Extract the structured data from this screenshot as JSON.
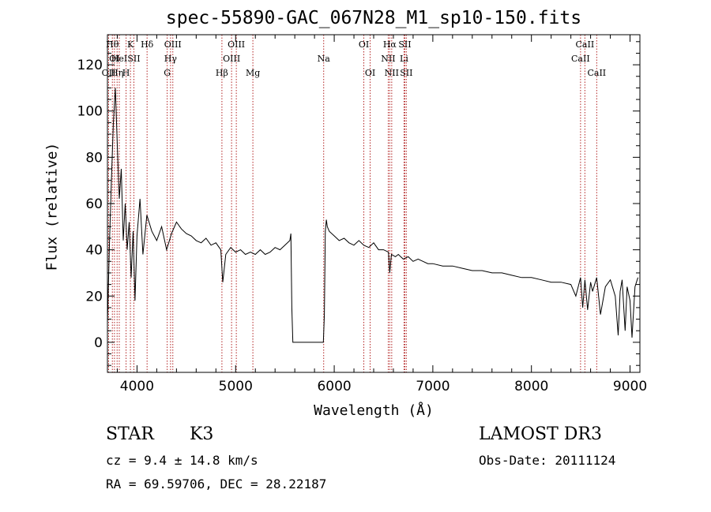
{
  "chart_data": {
    "type": "line",
    "title": "spec-55890-GAC_067N28_M1_sp10-150.fits",
    "xlabel": "Wavelength (Å)",
    "ylabel": "Flux (relative)",
    "xlim": [
      3700,
      9100
    ],
    "ylim": [
      -13,
      133
    ],
    "xticks": [
      4000,
      5000,
      6000,
      7000,
      8000,
      9000
    ],
    "yticks": [
      0,
      20,
      40,
      60,
      80,
      100,
      120
    ],
    "series": [
      {
        "name": "flux",
        "color": "#000000",
        "x": [
          3700,
          3720,
          3740,
          3760,
          3780,
          3800,
          3820,
          3840,
          3860,
          3880,
          3900,
          3920,
          3940,
          3960,
          3980,
          4000,
          4030,
          4060,
          4100,
          4150,
          4200,
          4250,
          4300,
          4350,
          4400,
          4450,
          4500,
          4550,
          4600,
          4650,
          4700,
          4750,
          4800,
          4850,
          4870,
          4900,
          4950,
          5000,
          5050,
          5100,
          5150,
          5200,
          5250,
          5300,
          5350,
          5400,
          5450,
          5500,
          5550,
          5560,
          5570,
          5580,
          5600,
          5700,
          5800,
          5890,
          5900,
          5910,
          5920,
          5930,
          5950,
          6000,
          6050,
          6100,
          6150,
          6200,
          6250,
          6300,
          6350,
          6400,
          6450,
          6500,
          6550,
          6563,
          6580,
          6620,
          6650,
          6700,
          6750,
          6800,
          6850,
          6900,
          6950,
          7000,
          7100,
          7200,
          7300,
          7400,
          7500,
          7600,
          7700,
          7800,
          7900,
          8000,
          8100,
          8200,
          8300,
          8400,
          8450,
          8498,
          8520,
          8542,
          8570,
          8600,
          8620,
          8662,
          8700,
          8750,
          8800,
          8850,
          8880,
          8900,
          8920,
          8950,
          8970,
          9000,
          9020,
          9050,
          9080
        ],
        "values": [
          8,
          42,
          70,
          95,
          110,
          85,
          62,
          75,
          44,
          60,
          40,
          52,
          28,
          48,
          18,
          46,
          62,
          38,
          55,
          48,
          44,
          50,
          40,
          47,
          52,
          49,
          47,
          46,
          44,
          43,
          45,
          42,
          43,
          40,
          26,
          38,
          41,
          39,
          40,
          38,
          39,
          38,
          40,
          38,
          39,
          41,
          40,
          42,
          44,
          47,
          15,
          0,
          0,
          0,
          0,
          0,
          12,
          48,
          53,
          50,
          48,
          46,
          44,
          45,
          43,
          42,
          44,
          42,
          41,
          43,
          40,
          40,
          39,
          30,
          38,
          37,
          38,
          36,
          37,
          35,
          36,
          35,
          34,
          34,
          33,
          33,
          32,
          31,
          31,
          30,
          30,
          29,
          28,
          28,
          27,
          26,
          26,
          25,
          20,
          28,
          15,
          27,
          14,
          26,
          22,
          28,
          12,
          24,
          27,
          20,
          3,
          22,
          27,
          5,
          24,
          18,
          2,
          24,
          28
        ]
      }
    ],
    "lines": [
      {
        "wl": 3712,
        "label": "OII",
        "row": 2
      },
      {
        "wl": 3750,
        "label": "Hθ",
        "row": 0
      },
      {
        "wl": 3771,
        "label": "OI",
        "row": 1
      },
      {
        "wl": 3798,
        "label": "Hη",
        "row": 2
      },
      {
        "wl": 3820,
        "label": "HeI",
        "row": 1
      },
      {
        "wl": 3889,
        "label": "H",
        "row": 2
      },
      {
        "wl": 3933,
        "label": "K",
        "row": 0
      },
      {
        "wl": 3968,
        "label": "SII",
        "row": 1
      },
      {
        "wl": 4102,
        "label": "Hδ",
        "row": 0
      },
      {
        "wl": 4306,
        "label": "G",
        "row": 2
      },
      {
        "wl": 4340,
        "label": "Hγ",
        "row": 1
      },
      {
        "wl": 4363,
        "label": "OIII",
        "row": 0
      },
      {
        "wl": 4861,
        "label": "Hβ",
        "row": 2
      },
      {
        "wl": 4959,
        "label": "OIII",
        "row": 1
      },
      {
        "wl": 5007,
        "label": "OIII",
        "row": 0
      },
      {
        "wl": 5175,
        "label": "Mg",
        "row": 2
      },
      {
        "wl": 5893,
        "label": "Na",
        "row": 1
      },
      {
        "wl": 6300,
        "label": "OI",
        "row": 0
      },
      {
        "wl": 6364,
        "label": "OI",
        "row": 2
      },
      {
        "wl": 6548,
        "label": "NII",
        "row": 1
      },
      {
        "wl": 6563,
        "label": "Hα",
        "row": 0
      },
      {
        "wl": 6583,
        "label": "NII",
        "row": 2
      },
      {
        "wl": 6708,
        "label": "Li",
        "row": 1
      },
      {
        "wl": 6716,
        "label": "SII",
        "row": 0
      },
      {
        "wl": 6731,
        "label": "SII",
        "row": 2
      },
      {
        "wl": 8498,
        "label": "CaII",
        "row": 1
      },
      {
        "wl": 8542,
        "label": "CaII",
        "row": 0
      },
      {
        "wl": 8662,
        "label": "CaII",
        "row": 2
      }
    ]
  },
  "info": {
    "object_class": "STAR",
    "subclass": "K3",
    "survey": "LAMOST DR3",
    "redshift_line": "cz =   9.4 ± 14.8 km/s",
    "obs_date": "Obs-Date: 20111124",
    "coords": "RA =  69.59706, DEC =  28.22187"
  }
}
